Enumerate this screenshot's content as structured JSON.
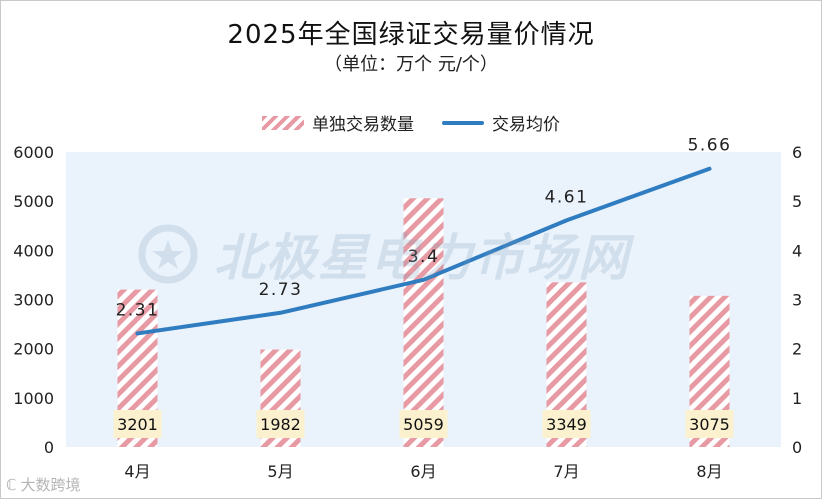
{
  "chart_data": {
    "type": "bar",
    "title": "2025年全国绿证交易量价情况",
    "subtitle": "（单位：万个  元/个）",
    "categories": [
      "4月",
      "5月",
      "6月",
      "7月",
      "8月"
    ],
    "series": [
      {
        "name": "单独交易数量",
        "type": "bar",
        "axis": "left",
        "values": [
          3201,
          1982,
          5059,
          3349,
          3075
        ]
      },
      {
        "name": "交易均价",
        "type": "line",
        "axis": "right",
        "values": [
          2.31,
          2.73,
          3.4,
          4.61,
          5.66
        ]
      }
    ],
    "ylim_left": [
      0,
      6000
    ],
    "ylim_right": [
      0,
      6
    ],
    "yticks_left": [
      "0",
      "1000",
      "2000",
      "3000",
      "4000",
      "5000",
      "6000"
    ],
    "yticks_right": [
      "0",
      "1",
      "2",
      "3",
      "4",
      "5",
      "6"
    ],
    "legend_position": "top-center",
    "colors": {
      "bar": "#e79aa3",
      "line": "#2f7dc0",
      "plot_bg": "#eaf2fb",
      "label_bg": "#fbf1cf"
    }
  },
  "watermark": {
    "text": "北极星电力市场网"
  },
  "corner_mark": {
    "text": "大数跨境"
  }
}
